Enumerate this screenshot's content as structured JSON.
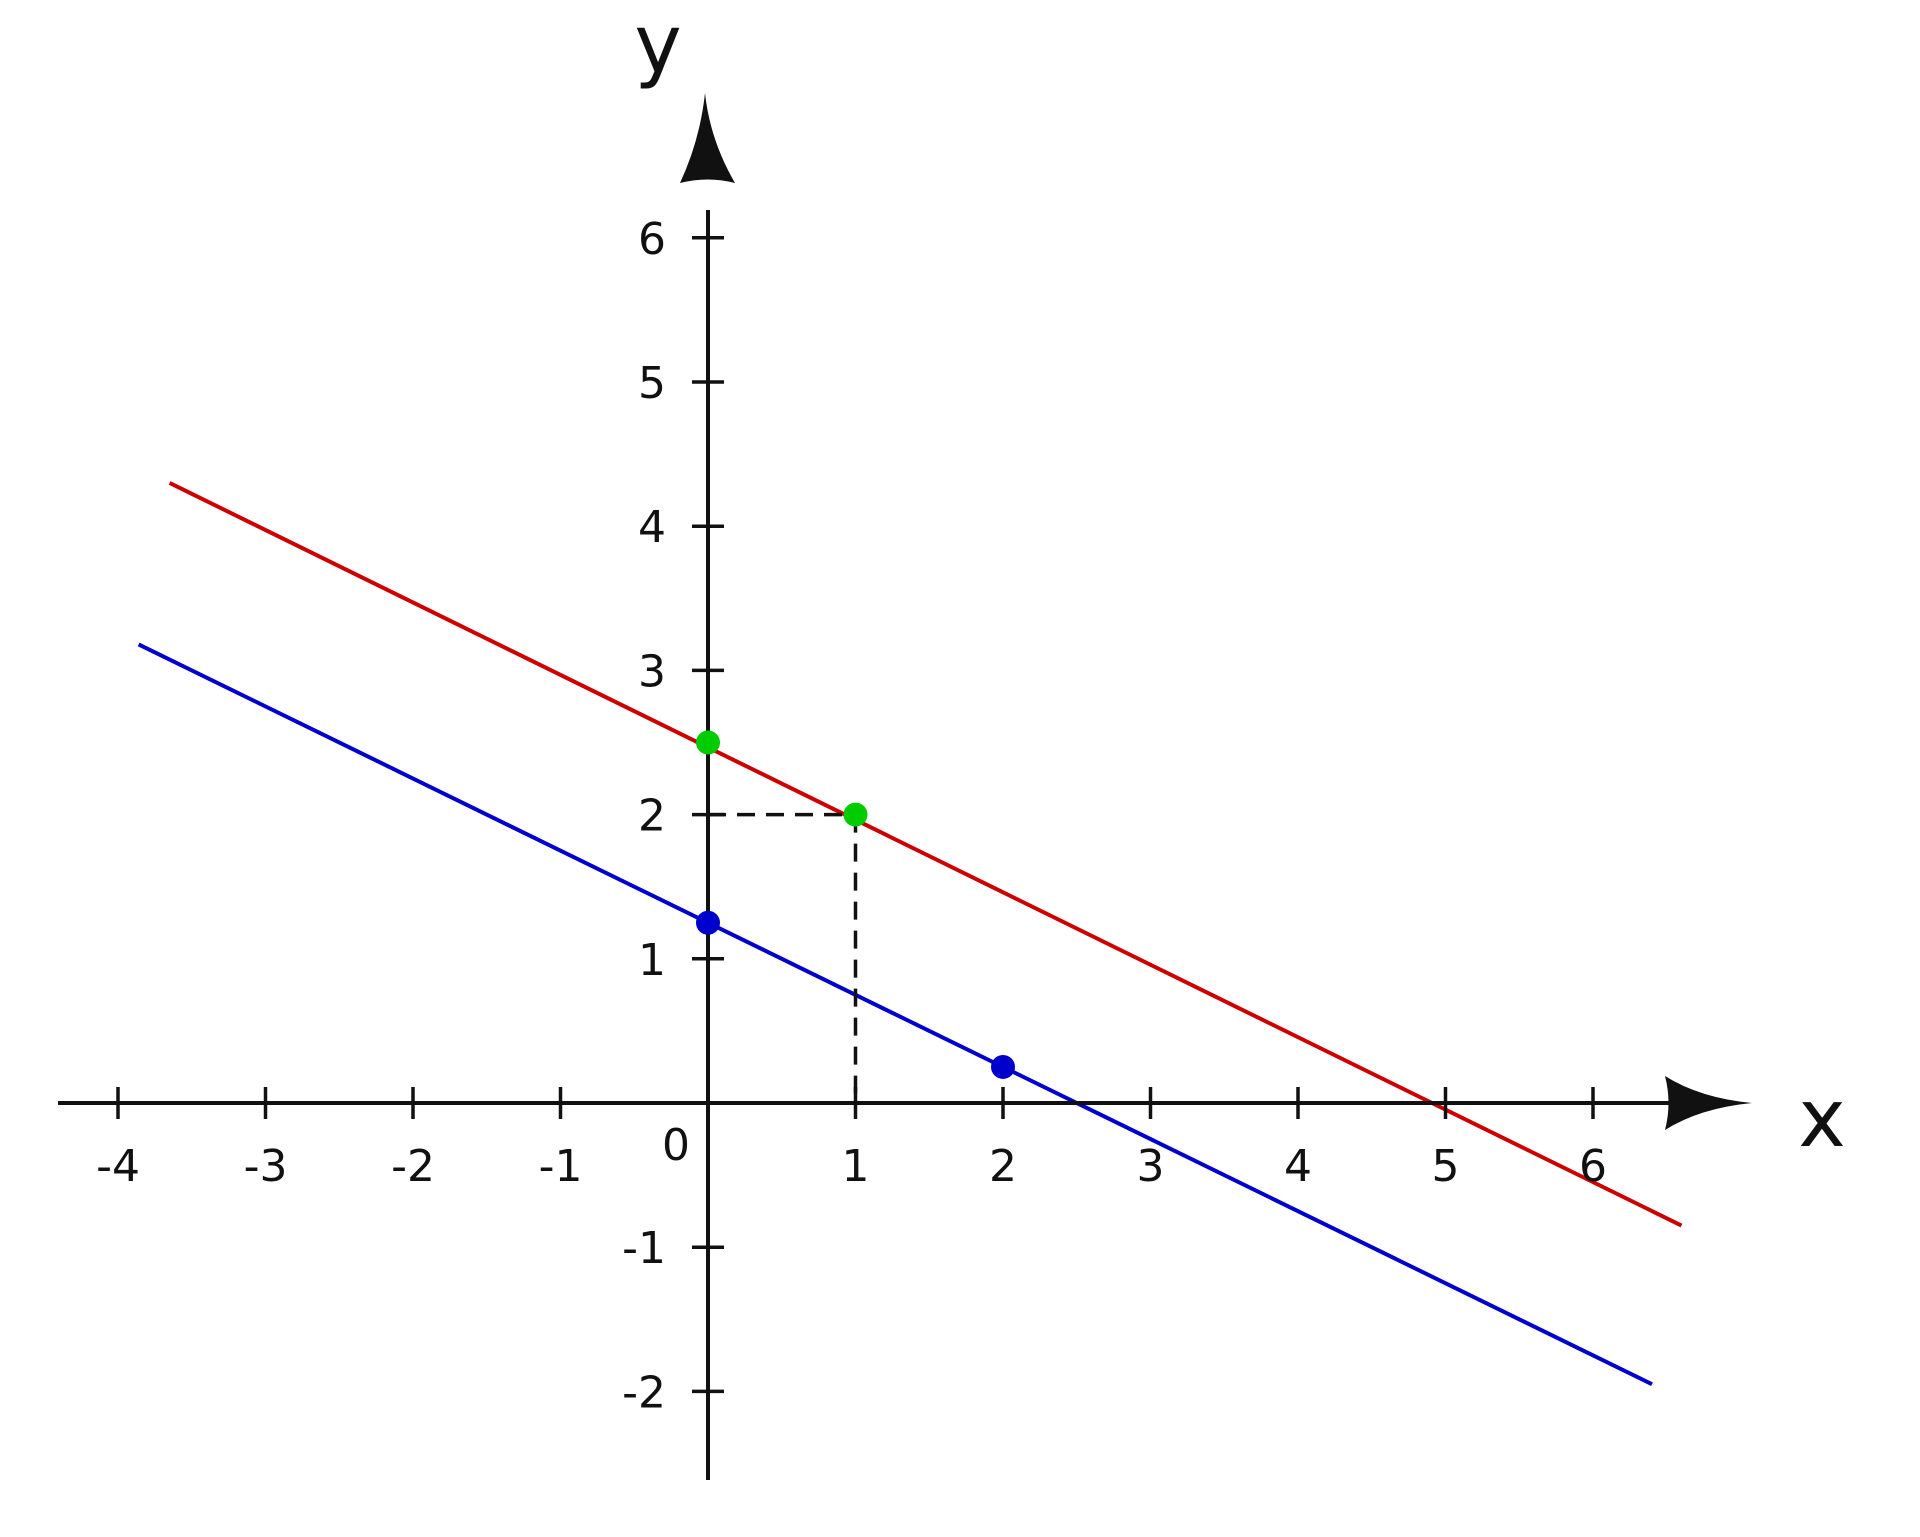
{
  "chart_data": {
    "type": "line",
    "title": "",
    "xlabel": "x",
    "ylabel": "y",
    "origin_label": "0",
    "xlim": [
      -4.35,
      6.65
    ],
    "ylim": [
      -2.55,
      6.35
    ],
    "x_ticks": [
      -4,
      -3,
      -2,
      -1,
      1,
      2,
      3,
      4,
      5,
      6
    ],
    "x_tick_labels": [
      "-4",
      "-3",
      "-2",
      "-1",
      "1",
      "2",
      "3",
      "4",
      "5",
      "6"
    ],
    "y_ticks": [
      -2,
      -1,
      1,
      2,
      3,
      4,
      5,
      6
    ],
    "y_tick_labels": [
      "-2",
      "-1",
      "1",
      "2",
      "3",
      "4",
      "5",
      "6"
    ],
    "grid": false,
    "legend": "none",
    "series": [
      {
        "color": "#cc0000",
        "x": [
          -3.65,
          6.6
        ],
        "y": [
          4.3,
          -0.85
        ]
      },
      {
        "color": "#0000cc",
        "x": [
          -3.86,
          6.4
        ],
        "y": [
          3.18,
          -1.95
        ]
      }
    ],
    "points": [
      {
        "x": 0,
        "y": 2.5,
        "color": "#00cc00"
      },
      {
        "x": 1,
        "y": 2.0,
        "color": "#00cc00"
      },
      {
        "x": 0,
        "y": 1.25,
        "color": "#0000cc"
      },
      {
        "x": 2,
        "y": 0.25,
        "color": "#0000cc"
      }
    ],
    "guides": [
      {
        "x": [
          0,
          1
        ],
        "y": [
          2,
          2
        ]
      },
      {
        "x": [
          1,
          1
        ],
        "y": [
          2,
          0
        ]
      }
    ],
    "colors": {
      "axis": "#111111",
      "guide": "#111111"
    }
  }
}
